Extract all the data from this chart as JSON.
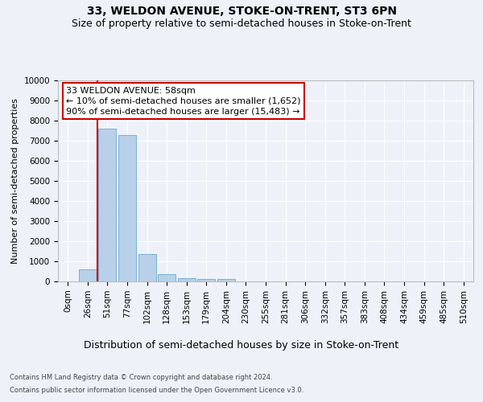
{
  "title1": "33, WELDON AVENUE, STOKE-ON-TRENT, ST3 6PN",
  "title2": "Size of property relative to semi-detached houses in Stoke-on-Trent",
  "xlabel": "Distribution of semi-detached houses by size in Stoke-on-Trent",
  "ylabel": "Number of semi-detached properties",
  "footer1": "Contains HM Land Registry data © Crown copyright and database right 2024.",
  "footer2": "Contains public sector information licensed under the Open Government Licence v3.0.",
  "categories": [
    "0sqm",
    "26sqm",
    "51sqm",
    "77sqm",
    "102sqm",
    "128sqm",
    "153sqm",
    "179sqm",
    "204sqm",
    "230sqm",
    "255sqm",
    "281sqm",
    "306sqm",
    "332sqm",
    "357sqm",
    "383sqm",
    "408sqm",
    "434sqm",
    "459sqm",
    "485sqm",
    "510sqm"
  ],
  "values": [
    0,
    600,
    7620,
    7280,
    1360,
    350,
    180,
    135,
    105,
    0,
    0,
    0,
    0,
    0,
    0,
    0,
    0,
    0,
    0,
    0,
    0
  ],
  "bar_color": "#b8d0ea",
  "bar_edge_color": "#7aafd4",
  "vline_color": "#cc0000",
  "vline_x": 1.5,
  "annotation_line1": "33 WELDON AVENUE: 58sqm",
  "annotation_line2": "← 10% of semi-detached houses are smaller (1,652)",
  "annotation_line3": "90% of semi-detached houses are larger (15,483) →",
  "annotation_box_color": "#ffffff",
  "annotation_box_edge": "#cc0000",
  "ylim": [
    0,
    10000
  ],
  "background_color": "#eef2f8",
  "grid_color": "#ffffff",
  "title1_fontsize": 10,
  "title2_fontsize": 9,
  "xlabel_fontsize": 9,
  "ylabel_fontsize": 8,
  "tick_fontsize": 7.5,
  "annotation_fontsize": 8,
  "footer_fontsize": 6
}
